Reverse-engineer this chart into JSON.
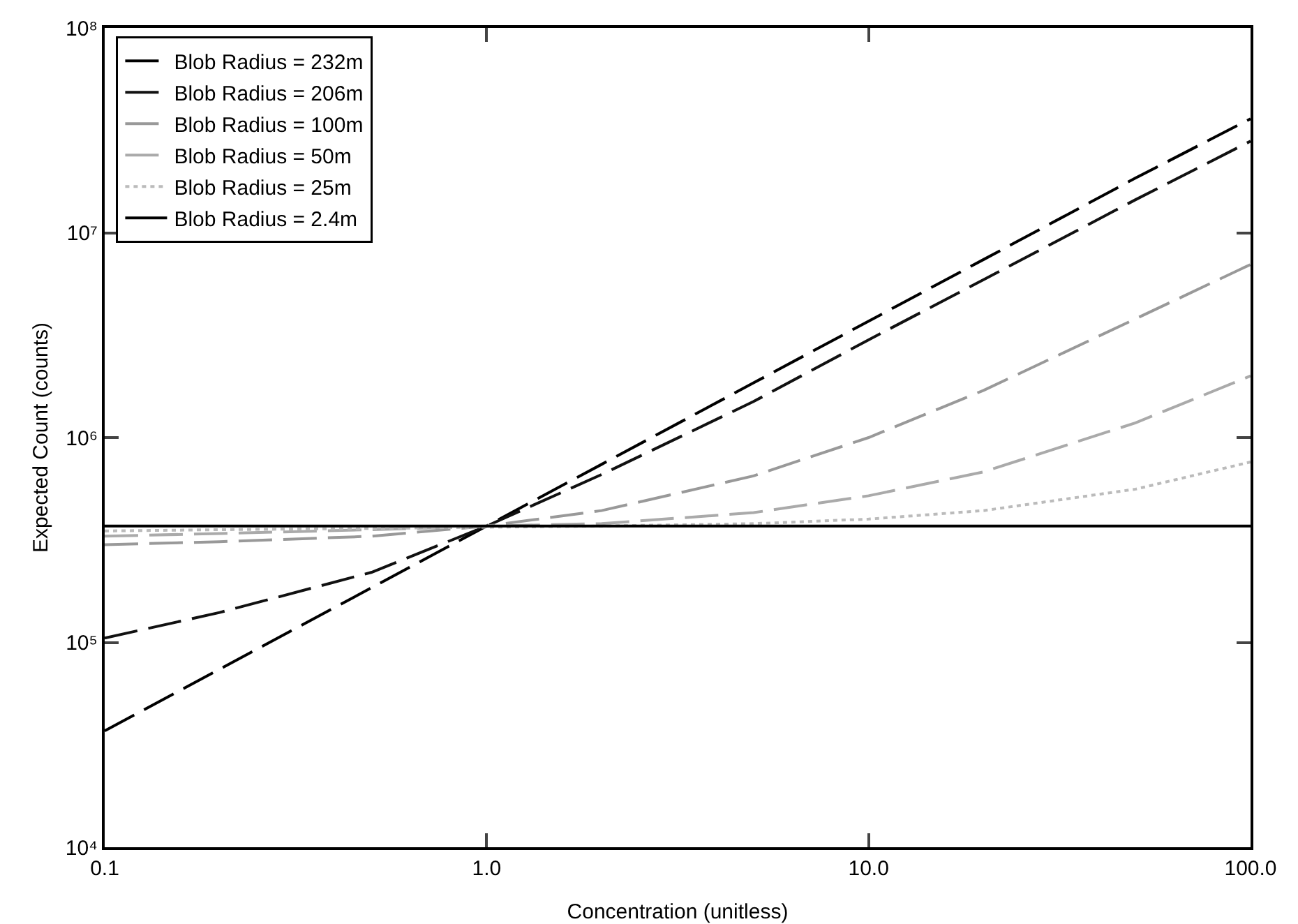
{
  "chart_data": {
    "type": "line",
    "xlabel": "Concentration (unitless)",
    "ylabel": "Expected Count (counts)",
    "log": "xy",
    "grid": false,
    "legend": "top left",
    "marker": "none",
    "x": [
      0.1,
      0.2,
      0.5,
      1,
      2,
      5,
      10,
      20,
      50,
      100
    ],
    "xlim": [
      0.1,
      100
    ],
    "xticks": [
      0.1,
      {
        "value": 1,
        "label": "1.0"
      },
      {
        "value": 10,
        "label": "10.0"
      },
      {
        "value": 100,
        "label": "100.0"
      }
    ],
    "ylim": [
      10000,
      100000000
    ],
    "yticks": [
      {
        "value": 10000,
        "label": "10⁴"
      },
      {
        "value": 100000,
        "label": "10⁵"
      },
      {
        "value": 1000000,
        "label": "10⁶"
      },
      {
        "value": 10000000,
        "label": "10⁷"
      },
      {
        "value": 100000000,
        "label": "10⁸"
      }
    ],
    "series": [
      {
        "name": "Blob Radius = 232m",
        "color": "#000000",
        "line_style": "dashed",
        "values": [
          37000,
          74000,
          185000,
          370000,
          740000,
          1850000,
          3700000,
          7400000,
          18500000,
          36000000
        ]
      },
      {
        "name": "Blob Radius = 206m",
        "color": "#111111",
        "line_style": "dashed",
        "values": [
          105000,
          140000,
          220000,
          370000,
          660000,
          1500000,
          3000000,
          5900000,
          14500000,
          28000000
        ]
      },
      {
        "name": "Blob Radius = 100m",
        "color": "#999999",
        "line_style": "dashed",
        "values": [
          300000,
          310000,
          330000,
          370000,
          440000,
          650000,
          1000000,
          1700000,
          3800000,
          7000000
        ]
      },
      {
        "name": "Blob Radius = 50m",
        "color": "#aaaaaa",
        "line_style": "dashed",
        "values": [
          330000,
          340000,
          355000,
          370000,
          380000,
          430000,
          520000,
          680000,
          1180000,
          2000000
        ]
      },
      {
        "name": "Blob Radius = 25m",
        "color": "#bbbbbb",
        "line_style": "dotted",
        "values": [
          350000,
          355000,
          360000,
          365000,
          370000,
          380000,
          400000,
          440000,
          560000,
          760000
        ]
      },
      {
        "name": "Blob Radius = 2.4m",
        "color": "#000000",
        "line_style": "solid",
        "values": [
          370000,
          370000,
          370000,
          370000,
          370000,
          370000,
          370000,
          370000,
          370000,
          370000
        ]
      }
    ]
  }
}
